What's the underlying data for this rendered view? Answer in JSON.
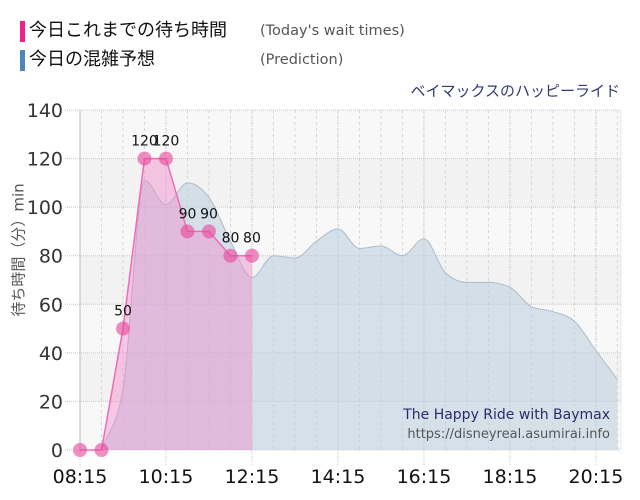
{
  "legend": {
    "items": [
      {
        "label_ja": "今日これまでの待ち時間",
        "label_en": "(Today's wait times)",
        "color": "#f0218c"
      },
      {
        "label_ja": "今日の混雑予想",
        "label_en": "(Prediction)",
        "color": "#4f86ba"
      }
    ]
  },
  "subtitle": "ベイマックスのハッピーライド",
  "watermark": {
    "title": "The Happy Ride with Baymax",
    "url": "https://disneyreal.asumirai.info"
  },
  "chart_data": {
    "type": "area",
    "title": "ベイマックスのハッピーライド",
    "xlabel": "",
    "ylabel": "待ち時間（分）min",
    "ylim": [
      0,
      140
    ],
    "yticks": [
      0,
      20,
      40,
      60,
      80,
      100,
      120,
      140
    ],
    "xlim": [
      "08:15",
      "20:50"
    ],
    "xticks": [
      "08:15",
      "10:15",
      "12:15",
      "14:15",
      "16:15",
      "18:15",
      "20:15"
    ],
    "minor_x_interval_min": 30,
    "grid": true,
    "legend_position": "top-left",
    "series": [
      {
        "name": "今日これまでの待ち時間 (Today's wait times)",
        "color": "#f0218c",
        "x": [
          "08:15",
          "08:45",
          "09:15",
          "09:45",
          "10:15",
          "10:45",
          "11:15",
          "11:45",
          "12:15"
        ],
        "values": [
          0,
          0,
          50,
          120,
          120,
          90,
          90,
          80,
          80
        ],
        "data_labels": [
          null,
          null,
          "50",
          "120",
          "120",
          "90",
          "90",
          "80",
          "80"
        ]
      },
      {
        "name": "今日の混雑予想 (Prediction)",
        "color": "#4f86ba",
        "x": [
          "08:45",
          "09:15",
          "09:45",
          "10:15",
          "10:45",
          "11:15",
          "11:45",
          "12:15",
          "12:45",
          "13:15",
          "13:45",
          "14:15",
          "14:45",
          "15:15",
          "15:45",
          "16:15",
          "16:45",
          "17:15",
          "17:45",
          "18:15",
          "18:45",
          "19:15",
          "19:45",
          "20:15",
          "20:45"
        ],
        "values": [
          0,
          25,
          111,
          101,
          110,
          104,
          86,
          71,
          80,
          79,
          86,
          91,
          83,
          84,
          80,
          87,
          73,
          69,
          69,
          67,
          59,
          57,
          53,
          41,
          29
        ]
      }
    ]
  }
}
